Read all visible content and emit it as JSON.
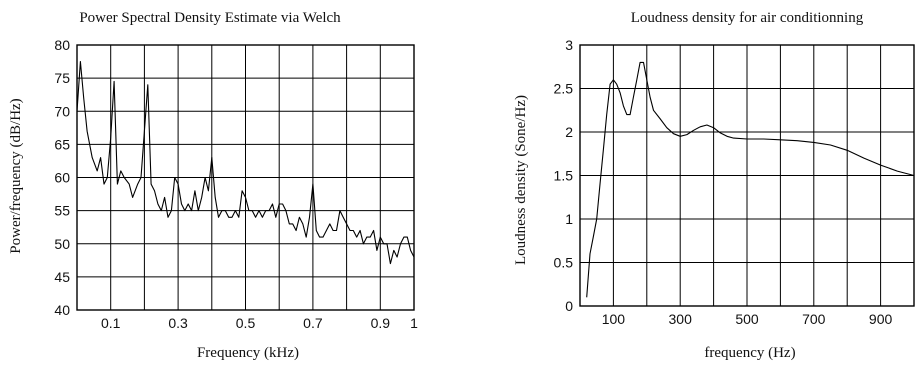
{
  "chart_data": [
    {
      "type": "line",
      "title": "Power Spectral Density Estimate via Welch",
      "xlabel": "Frequency (kHz)",
      "ylabel": "Power/frequency (dB/Hz)",
      "xlim": [
        0,
        1
      ],
      "ylim": [
        40,
        80
      ],
      "xticks": [
        0.1,
        0.3,
        0.5,
        0.7,
        0.9,
        1
      ],
      "xtick_labels": [
        "0.1",
        "0.3",
        "0.5",
        "0.7",
        "0.9",
        "1"
      ],
      "yticks": [
        40,
        45,
        50,
        55,
        60,
        65,
        70,
        75,
        80
      ],
      "ytick_labels": [
        "40",
        "45",
        "50",
        "55",
        "60",
        "65",
        "70",
        "75",
        "80"
      ],
      "xgrid": [
        0.1,
        0.2,
        0.3,
        0.4,
        0.5,
        0.6,
        0.7,
        0.8,
        0.9
      ],
      "ygrid": [
        45,
        50,
        55,
        60,
        65,
        70,
        75
      ],
      "grid": true,
      "x": [
        0.0,
        0.01,
        0.02,
        0.03,
        0.045,
        0.06,
        0.07,
        0.08,
        0.09,
        0.1,
        0.11,
        0.12,
        0.13,
        0.14,
        0.155,
        0.165,
        0.18,
        0.19,
        0.2,
        0.21,
        0.22,
        0.23,
        0.24,
        0.25,
        0.26,
        0.27,
        0.28,
        0.29,
        0.3,
        0.31,
        0.32,
        0.33,
        0.34,
        0.35,
        0.36,
        0.37,
        0.38,
        0.39,
        0.4,
        0.41,
        0.42,
        0.43,
        0.44,
        0.45,
        0.46,
        0.47,
        0.48,
        0.49,
        0.5,
        0.51,
        0.52,
        0.53,
        0.54,
        0.55,
        0.56,
        0.57,
        0.58,
        0.59,
        0.6,
        0.61,
        0.62,
        0.63,
        0.64,
        0.65,
        0.66,
        0.67,
        0.68,
        0.69,
        0.7,
        0.71,
        0.72,
        0.73,
        0.74,
        0.75,
        0.76,
        0.77,
        0.78,
        0.79,
        0.8,
        0.81,
        0.82,
        0.83,
        0.84,
        0.85,
        0.86,
        0.87,
        0.88,
        0.89,
        0.9,
        0.91,
        0.92,
        0.93,
        0.94,
        0.95,
        0.96,
        0.97,
        0.98,
        0.99,
        1.0
      ],
      "y": [
        70,
        77.5,
        72,
        67,
        63,
        61,
        63,
        59,
        60,
        66,
        74.5,
        59,
        61,
        60,
        59,
        57,
        59,
        60,
        67,
        74,
        59,
        58,
        56,
        55,
        57,
        54,
        55,
        60,
        59,
        56,
        55,
        56,
        55,
        58,
        55,
        57,
        60,
        58,
        63,
        57,
        54,
        55,
        55,
        54,
        54,
        55,
        54,
        58,
        57,
        55,
        55,
        54,
        55,
        54,
        55,
        55,
        56,
        54,
        56,
        56,
        55,
        53,
        53,
        52,
        54,
        53,
        51,
        54,
        59,
        52,
        51,
        51,
        52,
        53,
        52,
        52,
        55,
        54,
        53,
        52,
        52,
        51,
        52,
        50,
        51,
        51,
        52,
        49,
        51,
        50,
        50,
        47,
        49,
        48,
        50,
        51,
        51,
        49,
        48
      ]
    },
    {
      "type": "line",
      "title": "Loudness density for air conditionning",
      "xlabel": "frequency (Hz)",
      "ylabel": "Loudness density (Sone/Hz)",
      "xlim": [
        0,
        1000
      ],
      "ylim": [
        0,
        3
      ],
      "xticks": [
        100,
        300,
        500,
        700,
        900
      ],
      "xtick_labels": [
        "100",
        "300",
        "500",
        "700",
        "900"
      ],
      "yticks": [
        0,
        0.5,
        1,
        1.5,
        2,
        2.5,
        3
      ],
      "ytick_labels": [
        "0",
        "0.5",
        "1",
        "1.5",
        "2",
        "2.5",
        "3"
      ],
      "xgrid": [
        100,
        200,
        300,
        400,
        500,
        600,
        700,
        800,
        900
      ],
      "ygrid": [
        0.5,
        1,
        1.5,
        2,
        2.5
      ],
      "grid": true,
      "x": [
        20,
        30,
        40,
        50,
        60,
        70,
        80,
        90,
        100,
        110,
        120,
        130,
        140,
        150,
        160,
        170,
        180,
        190,
        200,
        210,
        220,
        240,
        260,
        280,
        300,
        320,
        340,
        360,
        380,
        400,
        420,
        440,
        460,
        500,
        550,
        600,
        650,
        700,
        750,
        800,
        850,
        900,
        950,
        1000
      ],
      "y": [
        0.1,
        0.6,
        0.8,
        1.0,
        1.4,
        1.8,
        2.2,
        2.55,
        2.6,
        2.55,
        2.45,
        2.3,
        2.2,
        2.2,
        2.4,
        2.6,
        2.8,
        2.8,
        2.6,
        2.4,
        2.25,
        2.15,
        2.05,
        1.98,
        1.95,
        1.97,
        2.02,
        2.06,
        2.08,
        2.05,
        1.99,
        1.95,
        1.93,
        1.92,
        1.92,
        1.91,
        1.9,
        1.88,
        1.85,
        1.79,
        1.7,
        1.62,
        1.55,
        1.5
      ]
    }
  ]
}
